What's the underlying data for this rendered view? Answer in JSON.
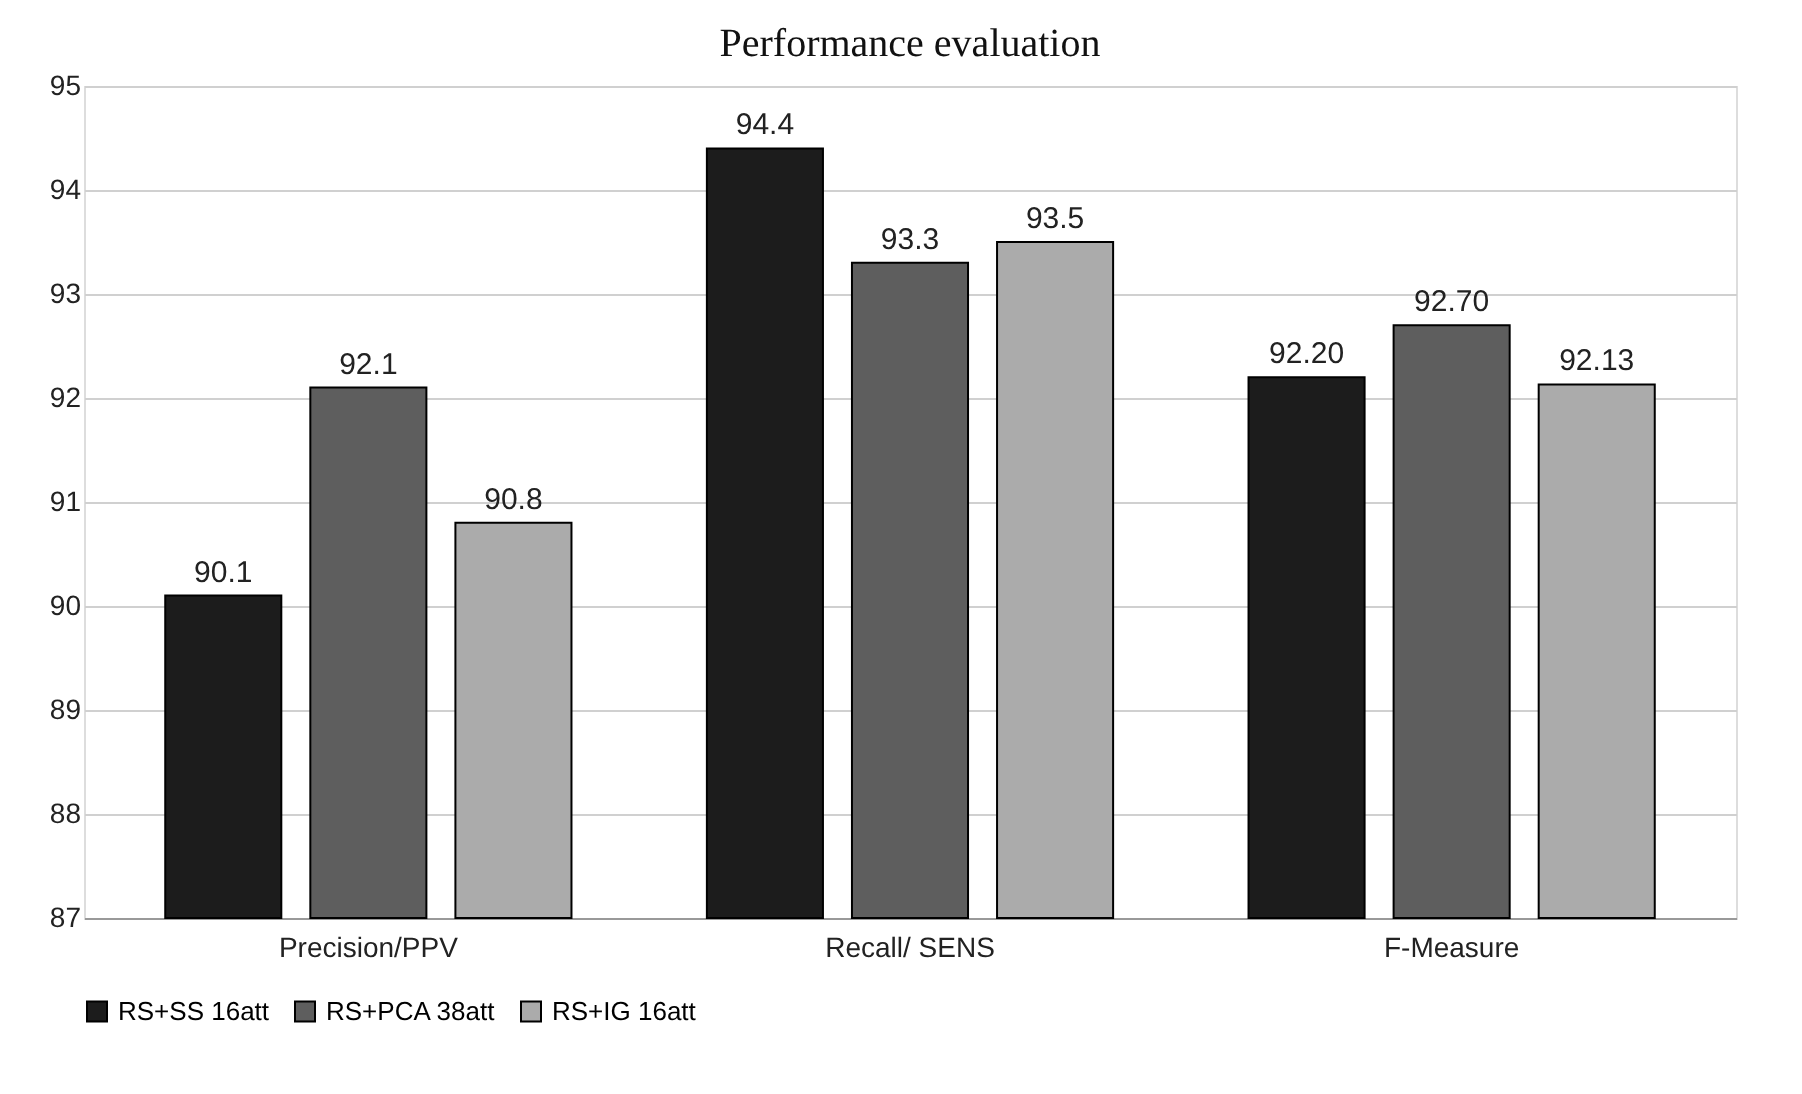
{
  "chart_data": {
    "type": "bar",
    "title": "Performance  evaluation",
    "categories": [
      "Precision/PPV",
      "Recall/ SENS",
      "F-Measure"
    ],
    "series": [
      {
        "name": "RS+SS 16att",
        "color": "#1c1c1c",
        "values": [
          90.1,
          94.4,
          92.2
        ],
        "value_labels": [
          "90.1",
          "94.4",
          "92.20"
        ]
      },
      {
        "name": "RS+PCA 38att",
        "color": "#5e5e5e",
        "values": [
          92.1,
          93.3,
          92.7
        ],
        "value_labels": [
          "92.1",
          "93.3",
          "92.70"
        ]
      },
      {
        "name": "RS+IG 16att",
        "color": "#ababab",
        "values": [
          90.8,
          93.5,
          92.13
        ],
        "value_labels": [
          "90.8",
          "93.5",
          "92.13"
        ]
      }
    ],
    "ylim": [
      87,
      95
    ],
    "yticks": [
      87,
      88,
      89,
      90,
      91,
      92,
      93,
      94,
      95
    ],
    "grid": "y",
    "legend": "bottom"
  }
}
